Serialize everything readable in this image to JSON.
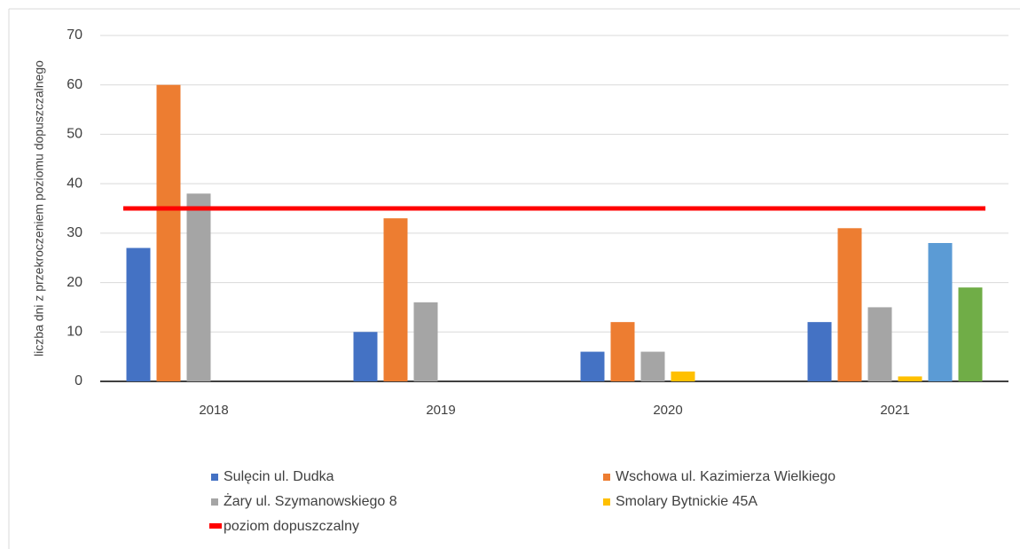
{
  "chart_data": {
    "type": "bar",
    "y_axis_label": "liczba dni z przekroczeniem poziomu dopuszczalnego",
    "categories": [
      "2018",
      "2019",
      "2020",
      "2021"
    ],
    "series": [
      {
        "name": "Sulęcin ul. Dudka",
        "color": "#4472c4",
        "values": [
          27,
          10,
          6,
          12
        ]
      },
      {
        "name": "Wschowa ul. Kazimierza Wielkiego",
        "color": "#ed7d31",
        "values": [
          60,
          33,
          12,
          31
        ]
      },
      {
        "name": "Żary ul. Szymanowskiego 8",
        "color": "#a5a5a5",
        "values": [
          38,
          16,
          6,
          15
        ]
      },
      {
        "name": "Smolary Bytnickie 45A",
        "color": "#ffc000",
        "values": [
          null,
          null,
          2,
          1
        ]
      },
      {
        "color": "#5b9bd5",
        "values": [
          null,
          null,
          null,
          28
        ]
      },
      {
        "color": "#70ad47",
        "values": [
          null,
          null,
          null,
          19
        ]
      },
      {
        "name": "poziom dopuszczalny",
        "type": "line",
        "color": "#ff0000",
        "values": [
          35,
          35,
          35,
          35
        ]
      }
    ],
    "ylim": [
      0,
      70
    ],
    "yticks": [
      0,
      10,
      20,
      30,
      40,
      50,
      60,
      70
    ],
    "grid": true
  }
}
